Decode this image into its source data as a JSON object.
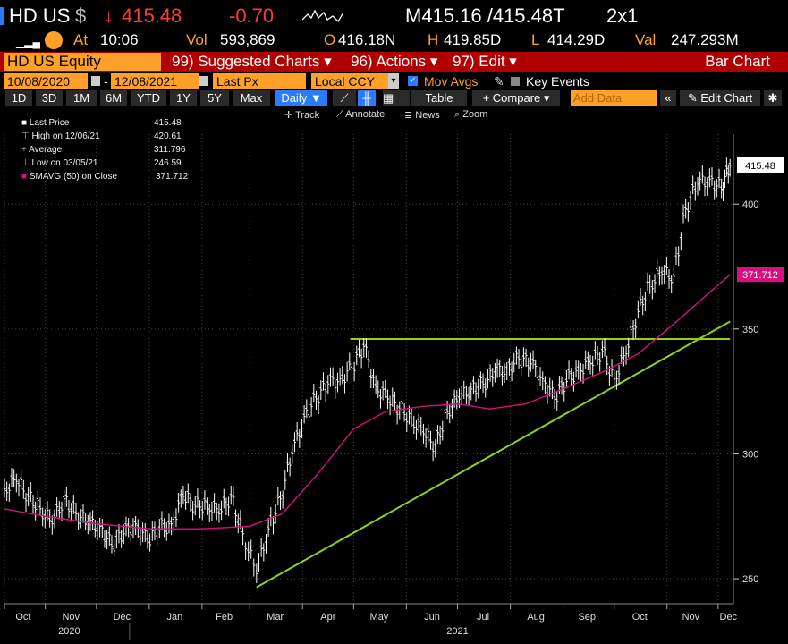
{
  "header": {
    "ticker": "HD US",
    "currency_symbol": "$",
    "arrow": "↓",
    "last_price": "415.48",
    "change": "-0.70",
    "bid_ask": "M415.16 /415.48T",
    "size": "2x1"
  },
  "quote": {
    "menu_icon": "bars-icon",
    "at_label": "At",
    "time": "10:06",
    "vol_label": "Vol",
    "volume": "593,869",
    "open_label": "O",
    "open": "416.18N",
    "high_label": "H",
    "high": "419.85D",
    "low_label": "L",
    "low": "414.29D",
    "val_label": "Val",
    "value": "247.293M"
  },
  "menubar": {
    "security": "HD US Equity",
    "suggested": "99) Suggested Charts ▾",
    "actions": "96) Actions ▾",
    "edit": "97) Edit ▾",
    "title": "Bar Chart"
  },
  "params": {
    "start_date": "10/08/2020",
    "dash": "-",
    "end_date": "12/08/2021",
    "field": "Last Px",
    "currency": "Local CCY",
    "mov_avgs": "Mov Avgs",
    "key_events": "Key Events"
  },
  "toolbar": {
    "ranges": [
      "1D",
      "3D",
      "1M",
      "6M",
      "YTD",
      "1Y",
      "5Y",
      "Max"
    ],
    "period": "Daily ▼",
    "table": "Table",
    "compare": "+ Compare ▾",
    "add_data_placeholder": "Add Data",
    "edit_chart": "Edit Chart",
    "track": "Track",
    "annotate": "Annotate",
    "news": "News",
    "zoom": "Zoom"
  },
  "legend": {
    "items": [
      {
        "label": "Last Price",
        "value": "415.48"
      },
      {
        "label": "High on 12/06/21",
        "value": "420.61"
      },
      {
        "label": "Average",
        "value": "311.796"
      },
      {
        "label": "Low on 03/05/21",
        "value": "246.59"
      },
      {
        "label": "SMAVG (50)  on Close",
        "value": "371.712"
      }
    ]
  },
  "colors": {
    "amber": "#ffa028",
    "menu_red": "#b00000",
    "price_bars": "#ffffff",
    "sma": "#d6107f",
    "trendline": "#8ed11c",
    "price_down": "#ff3b3b"
  },
  "chart_data": {
    "type": "bar",
    "title": "",
    "xlabel": "",
    "ylabel": "",
    "x_ticks": [
      "Oct",
      "Nov",
      "Dec",
      "Jan",
      "Feb",
      "Mar",
      "Apr",
      "May",
      "Jun",
      "Jul",
      "Aug",
      "Sep",
      "Oct",
      "Nov",
      "Dec"
    ],
    "year_labels": [
      "2020",
      "2021"
    ],
    "y_ticks": [
      250,
      300,
      350,
      400
    ],
    "ylim": [
      240,
      428
    ],
    "last_price_label": "415.48",
    "sma_label": "371.712",
    "price_series": {
      "name": "Last Price",
      "dates": [
        "2020-10-08",
        "2020-10-15",
        "2020-10-22",
        "2020-10-29",
        "2020-11-05",
        "2020-11-12",
        "2020-11-19",
        "2020-11-26",
        "2020-12-03",
        "2020-12-10",
        "2020-12-17",
        "2020-12-24",
        "2020-12-31",
        "2021-01-07",
        "2021-01-14",
        "2021-01-21",
        "2021-01-28",
        "2021-02-04",
        "2021-02-11",
        "2021-02-18",
        "2021-02-25",
        "2021-03-05",
        "2021-03-12",
        "2021-03-19",
        "2021-03-26",
        "2021-04-02",
        "2021-04-09",
        "2021-04-16",
        "2021-04-23",
        "2021-04-30",
        "2021-05-07",
        "2021-05-14",
        "2021-05-21",
        "2021-05-28",
        "2021-06-04",
        "2021-06-11",
        "2021-06-18",
        "2021-06-25",
        "2021-07-02",
        "2021-07-09",
        "2021-07-16",
        "2021-07-23",
        "2021-07-30",
        "2021-08-06",
        "2021-08-13",
        "2021-08-20",
        "2021-08-27",
        "2021-09-03",
        "2021-09-10",
        "2021-09-17",
        "2021-09-24",
        "2021-10-01",
        "2021-10-08",
        "2021-10-15",
        "2021-10-22",
        "2021-10-29",
        "2021-11-05",
        "2021-11-12",
        "2021-11-19",
        "2021-11-26",
        "2021-12-03",
        "2021-12-08"
      ],
      "close": [
        286,
        289,
        283,
        278,
        272,
        282,
        276,
        272,
        271,
        263,
        268,
        272,
        265,
        270,
        272,
        283,
        279,
        280,
        276,
        283,
        268,
        252,
        270,
        282,
        300,
        315,
        322,
        328,
        330,
        334,
        343,
        327,
        322,
        318,
        314,
        308,
        303,
        317,
        322,
        326,
        328,
        332,
        334,
        338,
        336,
        330,
        322,
        329,
        334,
        336,
        341,
        330,
        340,
        357,
        368,
        372,
        371,
        398,
        408,
        410,
        406,
        415.48
      ]
    },
    "sma_series": {
      "name": "SMAVG (50)",
      "dates": [
        "2020-10-08",
        "2020-11-01",
        "2020-12-01",
        "2021-01-01",
        "2021-02-01",
        "2021-03-01",
        "2021-03-20",
        "2021-04-10",
        "2021-05-01",
        "2021-05-20",
        "2021-06-10",
        "2021-07-01",
        "2021-07-20",
        "2021-08-10",
        "2021-09-01",
        "2021-09-25",
        "2021-10-15",
        "2021-11-05",
        "2021-11-25",
        "2021-12-08"
      ],
      "values": [
        278,
        275,
        272,
        270,
        270,
        271,
        276,
        292,
        310,
        317,
        319,
        320,
        318,
        320,
        326,
        333,
        340,
        352,
        364,
        371.7
      ]
    },
    "resistance_line": {
      "dates": [
        "2021-04-29",
        "2021-12-08"
      ],
      "values": [
        346,
        346
      ]
    },
    "support_line": {
      "dates": [
        "2021-03-05",
        "2021-12-08"
      ],
      "values": [
        246.6,
        353
      ]
    }
  }
}
